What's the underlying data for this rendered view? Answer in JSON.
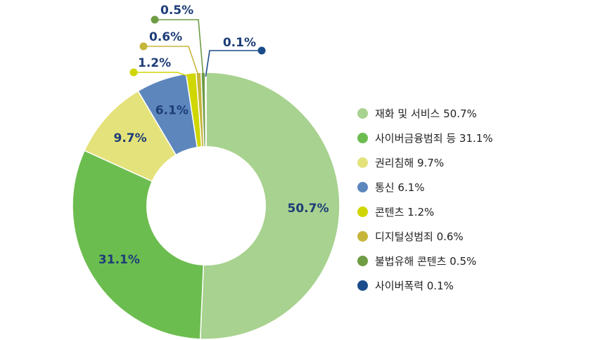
{
  "chart_data": {
    "type": "pie",
    "donut": true,
    "legend_position": "right",
    "slices": [
      {
        "label": "재화 및 서비스",
        "value": 50.7,
        "value_label": "50.7%",
        "legend": "재화 및 서비스 50.7%",
        "color": "#a8d28f"
      },
      {
        "label": "사이버금융범죄 등",
        "value": 31.1,
        "value_label": "31.1%",
        "legend": "사이버금융범죄 등 31.1%",
        "color": "#6cbd4f"
      },
      {
        "label": "권리침해",
        "value": 9.7,
        "value_label": "9.7%",
        "legend": "권리침해 9.7%",
        "color": "#e4e27a"
      },
      {
        "label": "통신",
        "value": 6.1,
        "value_label": "6.1%",
        "legend": "통신 6.1%",
        "color": "#5d86bd"
      },
      {
        "label": "콘텐츠",
        "value": 1.2,
        "value_label": "1.2%",
        "legend": "콘텐츠 1.2%",
        "color": "#cfd600"
      },
      {
        "label": "디지털성범죄",
        "value": 0.6,
        "value_label": "0.6%",
        "legend": "디지털성범죄 0.6%",
        "color": "#c5b53b"
      },
      {
        "label": "불법유해 콘텐츠",
        "value": 0.5,
        "value_label": "0.5%",
        "legend": "불법유해 콘텐츠 0.5%",
        "color": "#6e9c43"
      },
      {
        "label": "사이버폭력",
        "value": 0.1,
        "value_label": "0.1%",
        "legend": "사이버폭력 0.1%",
        "color": "#1a4c8b"
      }
    ]
  }
}
